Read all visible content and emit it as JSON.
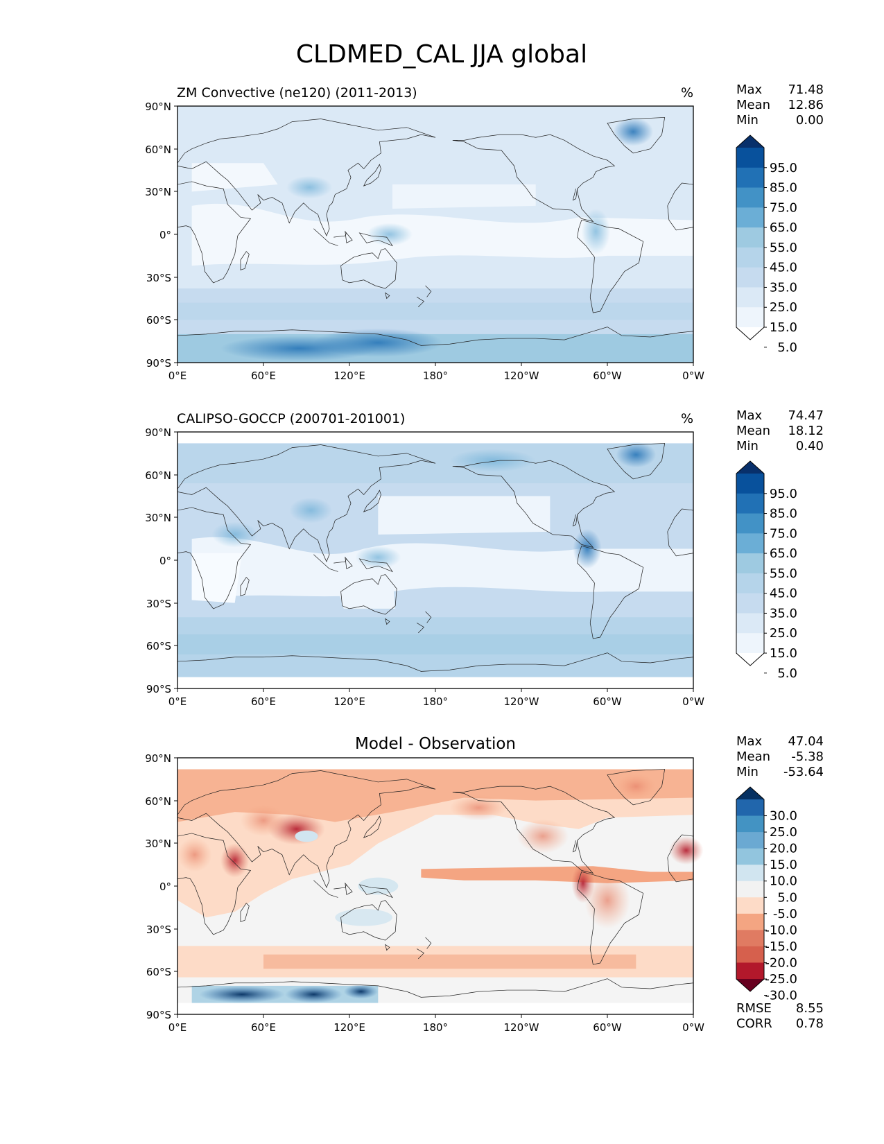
{
  "title": "CLDMED_CAL JJA global",
  "x_ticks": [
    "0°E",
    "60°E",
    "120°E",
    "180°",
    "120°W",
    "60°W",
    "0°W"
  ],
  "y_ticks": [
    "90°N",
    "60°N",
    "30°N",
    "0°",
    "30°S",
    "60°S",
    "90°S"
  ],
  "panels": [
    {
      "title_left": "ZM Convective (ne120) (2011-2013)",
      "title_center": "",
      "units": "%",
      "stats": [
        {
          "label": "Max",
          "value": "71.48"
        },
        {
          "label": "Mean",
          "value": "12.86"
        },
        {
          "label": "Min",
          "value": "0.00"
        }
      ],
      "colorbar": {
        "labels": [
          "95.0",
          "85.0",
          "75.0",
          "65.0",
          "55.0",
          "45.0",
          "35.0",
          "25.0",
          "15.0",
          "5.0"
        ],
        "colors_top_to_bottom": [
          "#08306b",
          "#08519c",
          "#2171b5",
          "#4292c6",
          "#6baed6",
          "#9ecae1",
          "#b5d4ea",
          "#c6dbef",
          "#dbe9f6",
          "#eef5fc",
          "#ffffff"
        ]
      },
      "footer_stats": []
    },
    {
      "title_left": "CALIPSO-GOCCP (200701-201001)",
      "title_center": "",
      "units": "%",
      "stats": [
        {
          "label": "Max",
          "value": "74.47"
        },
        {
          "label": "Mean",
          "value": "18.12"
        },
        {
          "label": "Min",
          "value": "0.40"
        }
      ],
      "colorbar": {
        "labels": [
          "95.0",
          "85.0",
          "75.0",
          "65.0",
          "55.0",
          "45.0",
          "35.0",
          "25.0",
          "15.0",
          "5.0"
        ],
        "colors_top_to_bottom": [
          "#08306b",
          "#08519c",
          "#2171b5",
          "#4292c6",
          "#6baed6",
          "#9ecae1",
          "#b5d4ea",
          "#c6dbef",
          "#dbe9f6",
          "#eef5fc",
          "#ffffff"
        ]
      },
      "footer_stats": []
    },
    {
      "title_left": "",
      "title_center": "Model - Observation",
      "units": "",
      "stats": [
        {
          "label": "Max",
          "value": "47.04"
        },
        {
          "label": "Mean",
          "value": "-5.38"
        },
        {
          "label": "Min",
          "value": "-53.64"
        }
      ],
      "colorbar": {
        "labels": [
          "30.0",
          "25.0",
          "20.0",
          "15.0",
          "10.0",
          "5.0",
          "-5.0",
          "-10.0",
          "-15.0",
          "-20.0",
          "-25.0",
          "-30.0"
        ],
        "colors_top_to_bottom": [
          "#053061",
          "#2166ac",
          "#4393c3",
          "#6ba9d2",
          "#92c5de",
          "#d1e5f0",
          "#f2f2f2",
          "#fddbc7",
          "#f4a582",
          "#e07b62",
          "#d6604d",
          "#b2182b",
          "#67001f"
        ]
      },
      "footer_stats": [
        {
          "label": "RMSE",
          "value": "8.55"
        },
        {
          "label": "CORR",
          "value": "0.78"
        }
      ]
    }
  ]
}
